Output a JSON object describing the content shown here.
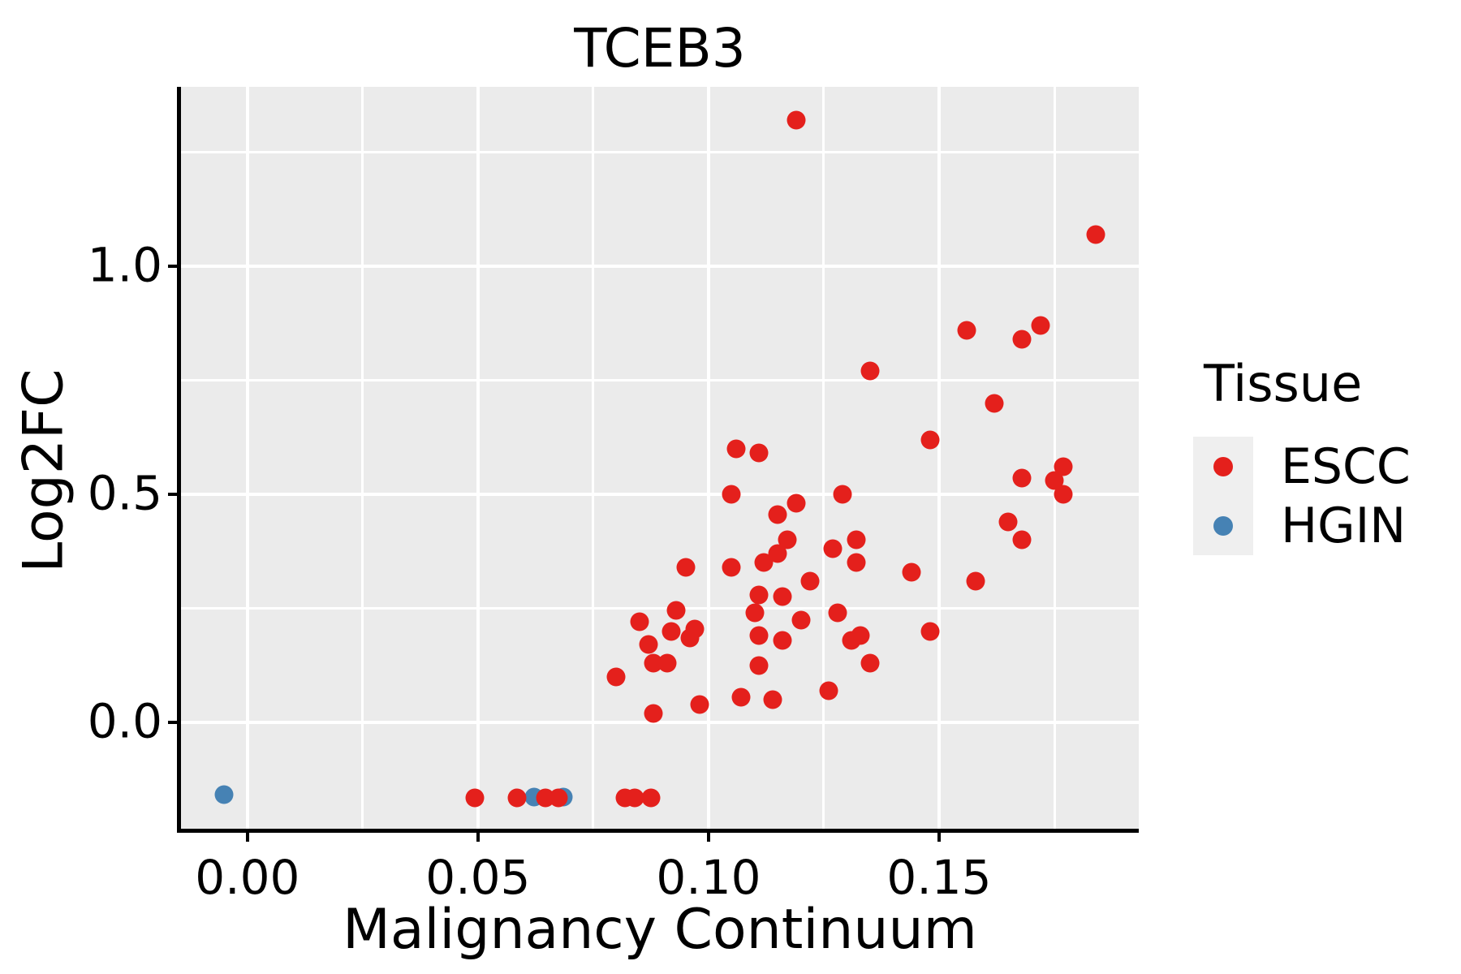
{
  "title": "TCEB3",
  "axes": {
    "x_label": "Malignancy Continuum",
    "y_label": "Log2FC",
    "x_tick_labels": [
      "0.00",
      "0.05",
      "0.10",
      "0.15"
    ],
    "x_tick_values": [
      0,
      0.05,
      0.1,
      0.15
    ],
    "x_minor_ticks": [
      0.025,
      0.075,
      0.125,
      0.175
    ],
    "y_tick_labels": [
      "0.0",
      "0.5",
      "1.0"
    ],
    "y_tick_values": [
      0,
      0.5,
      1.0
    ],
    "y_minor_ticks": [
      0.25,
      0.75,
      1.25
    ]
  },
  "legend": {
    "title": "Tissue",
    "position": "right",
    "entries": [
      {
        "label": "ESCC",
        "color": "#E4201C"
      },
      {
        "label": "HGIN",
        "color": "#4682B4"
      }
    ]
  },
  "colors": {
    "panel_bg": "#EBEBEB",
    "grid": "#FFFFFF",
    "axis": "#000000",
    "legend_key_bg": "#EFEFEF"
  },
  "chart_data": {
    "type": "scatter",
    "title": "TCEB3",
    "xlabel": "Malignancy Continuum",
    "ylabel": "Log2FC",
    "xlim": [
      -0.0144,
      0.1933
    ],
    "ylim": [
      -0.233,
      1.393
    ],
    "grid": true,
    "legend_position": "right",
    "series": [
      {
        "name": "ESCC",
        "color": "#E4201C",
        "points": [
          [
            0.119,
            1.32
          ],
          [
            0.184,
            1.07
          ],
          [
            0.172,
            0.87
          ],
          [
            0.156,
            0.86
          ],
          [
            0.168,
            0.84
          ],
          [
            0.135,
            0.77
          ],
          [
            0.162,
            0.7
          ],
          [
            0.148,
            0.62
          ],
          [
            0.106,
            0.6
          ],
          [
            0.111,
            0.59
          ],
          [
            0.177,
            0.56
          ],
          [
            0.168,
            0.535
          ],
          [
            0.175,
            0.53
          ],
          [
            0.177,
            0.5
          ],
          [
            0.105,
            0.5
          ],
          [
            0.129,
            0.5
          ],
          [
            0.119,
            0.48
          ],
          [
            0.115,
            0.455
          ],
          [
            0.165,
            0.44
          ],
          [
            0.117,
            0.4
          ],
          [
            0.132,
            0.4
          ],
          [
            0.168,
            0.4
          ],
          [
            0.127,
            0.38
          ],
          [
            0.115,
            0.37
          ],
          [
            0.112,
            0.35
          ],
          [
            0.132,
            0.35
          ],
          [
            0.095,
            0.34
          ],
          [
            0.105,
            0.34
          ],
          [
            0.144,
            0.33
          ],
          [
            0.158,
            0.31
          ],
          [
            0.122,
            0.31
          ],
          [
            0.111,
            0.28
          ],
          [
            0.116,
            0.275
          ],
          [
            0.093,
            0.245
          ],
          [
            0.11,
            0.24
          ],
          [
            0.128,
            0.24
          ],
          [
            0.12,
            0.225
          ],
          [
            0.085,
            0.22
          ],
          [
            0.097,
            0.205
          ],
          [
            0.092,
            0.2
          ],
          [
            0.148,
            0.2
          ],
          [
            0.111,
            0.19
          ],
          [
            0.133,
            0.19
          ],
          [
            0.096,
            0.185
          ],
          [
            0.116,
            0.18
          ],
          [
            0.131,
            0.18
          ],
          [
            0.087,
            0.17
          ],
          [
            0.088,
            0.13
          ],
          [
            0.091,
            0.13
          ],
          [
            0.135,
            0.13
          ],
          [
            0.111,
            0.125
          ],
          [
            0.08,
            0.1
          ],
          [
            0.126,
            0.07
          ],
          [
            0.107,
            0.055
          ],
          [
            0.114,
            0.05
          ],
          [
            0.098,
            0.04
          ],
          [
            0.088,
            0.02
          ],
          [
            0.0494,
            -0.165
          ],
          [
            0.0585,
            -0.165
          ],
          [
            0.0646,
            -0.165
          ],
          [
            0.0674,
            -0.165
          ],
          [
            0.0819,
            -0.165
          ],
          [
            0.084,
            -0.165
          ],
          [
            0.0875,
            -0.165
          ]
        ]
      },
      {
        "name": "HGIN",
        "color": "#4682B4",
        "points": [
          [
            -0.005,
            -0.158
          ],
          [
            0.0622,
            -0.163
          ],
          [
            0.0685,
            -0.163
          ]
        ]
      }
    ]
  }
}
